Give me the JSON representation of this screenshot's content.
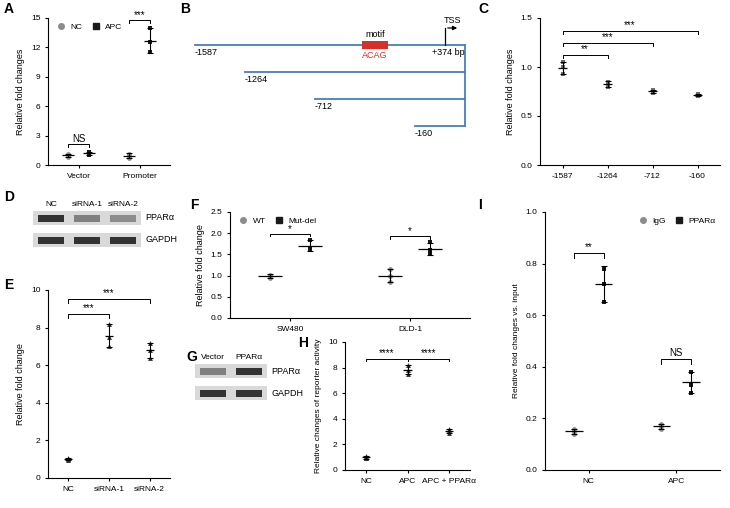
{
  "chart_data": [
    {
      "type": "dot_plot",
      "title": "A",
      "y_label": "Relative fold changes",
      "categories": [
        "Vector",
        "Promoter"
      ],
      "series": [
        {
          "name": "NC",
          "color": "#8c8c8c",
          "marker": "circle",
          "values": [
            [
              1.0,
              0.85,
              1.1
            ],
            [
              1.0,
              0.7,
              1.15
            ]
          ],
          "means": [
            0.98,
            0.95
          ],
          "errors": [
            0.13,
            0.23
          ]
        },
        {
          "name": "APC",
          "color": "#1a1a1a",
          "marker": "square",
          "values": [
            [
              1.15,
              1.05,
              1.35
            ],
            [
              14.0,
              12.5,
              11.5
            ]
          ],
          "means": [
            1.18,
            12.67
          ],
          "errors": [
            0.15,
            1.26
          ]
        }
      ],
      "ylim": [
        0,
        15
      ],
      "yticks": [
        0,
        3,
        6,
        9,
        12,
        15
      ],
      "legend": "upper left",
      "annotations": [
        {
          "text": "NS",
          "category": "Vector"
        },
        {
          "text": "***",
          "category": "Promoter"
        }
      ]
    },
    {
      "type": "dot_plot",
      "title": "C",
      "y_label": "Relative fold changes",
      "categories": [
        "-1587",
        "-1264",
        "-712",
        "-160"
      ],
      "series": [
        {
          "color": "#6e6e6e",
          "marker": "square",
          "values": [
            [
              1.05,
              0.93,
              1.0
            ],
            [
              0.85,
              0.8,
              0.84
            ],
            [
              0.77,
              0.73,
              0.75
            ],
            [
              0.72,
              0.7,
              0.71
            ]
          ],
          "means": [
            0.99,
            0.83,
            0.75,
            0.71
          ],
          "errors": [
            0.06,
            0.03,
            0.02,
            0.01
          ]
        }
      ],
      "ylim": [
        0,
        1.5
      ],
      "yticks": [
        {
          "value": 0,
          "label": "0.0"
        },
        {
          "value": 0.5,
          "label": "0.5"
        },
        {
          "value": 1.0,
          "label": "1.0"
        },
        {
          "value": 1.5,
          "label": "1.5"
        }
      ],
      "annotations": [
        {
          "text": "**",
          "between": [
            "-1587",
            "-1264"
          ]
        },
        {
          "text": "***",
          "between": [
            "-1587",
            "-712"
          ]
        },
        {
          "text": "***",
          "between": [
            "-1587",
            "-160"
          ]
        }
      ]
    },
    {
      "type": "dot_plot",
      "title": "E",
      "y_label": "Relative fold change",
      "categories": [
        "NC",
        "siRNA-1",
        "siRNA-2"
      ],
      "series": [
        {
          "color": "#2b2b2b",
          "marker": "triangle",
          "values": [
            [
              1.05,
              0.98,
              1.0
            ],
            [
              8.2,
              7.5,
              7.0
            ],
            [
              7.2,
              6.8,
              6.4
            ]
          ],
          "means": [
            1.01,
            7.57,
            6.8
          ],
          "errors": [
            0.04,
            0.61,
            0.4
          ]
        }
      ],
      "ylim": [
        0,
        10
      ],
      "yticks": [
        0,
        2,
        4,
        6,
        8,
        10
      ],
      "annotations": [
        {
          "text": "***",
          "between": [
            "NC",
            "siRNA-1"
          ]
        },
        {
          "text": "***",
          "between": [
            "NC",
            "siRNA-2"
          ]
        }
      ]
    },
    {
      "type": "dot_plot",
      "title": "F",
      "y_label": "Relative fold change",
      "categories": [
        "SW480",
        "DLD-1"
      ],
      "series": [
        {
          "name": "WT",
          "color": "#8c8c8c",
          "marker": "circle",
          "values": [
            [
              1.0,
              0.95,
              1.02
            ],
            [
              1.0,
              0.85,
              1.15
            ]
          ],
          "means": [
            0.99,
            1.0
          ],
          "errors": [
            0.04,
            0.15
          ]
        },
        {
          "name": "Mut-del",
          "color": "#1a1a1a",
          "marker": "square",
          "values": [
            [
              1.6,
              1.85,
              1.65
            ],
            [
              1.8,
              1.6,
              1.5
            ]
          ],
          "means": [
            1.7,
            1.63
          ],
          "errors": [
            0.13,
            0.15
          ]
        }
      ],
      "ylim": [
        0,
        2.5
      ],
      "yticks": [
        {
          "value": 0,
          "label": "0.0"
        },
        {
          "value": 0.5,
          "label": "0.5"
        },
        {
          "value": 1.0,
          "label": "1.0"
        },
        {
          "value": 1.5,
          "label": "1.5"
        },
        {
          "value": 2.0,
          "label": "2.0"
        },
        {
          "value": 2.5,
          "label": "2.5"
        }
      ],
      "legend": "upper left",
      "annotations": [
        {
          "text": "*",
          "category": "SW480"
        },
        {
          "text": "*",
          "category": "DLD-1"
        }
      ]
    },
    {
      "type": "dot_plot",
      "title": "H",
      "y_label": "Relative changes of reporter activity",
      "categories": [
        "NC",
        "APC",
        "APC + PPARα"
      ],
      "series": [
        {
          "color": "#2b2b2b",
          "marker": "triangle",
          "values": [
            [
              1.1,
              0.95,
              0.9
            ],
            [
              8.2,
              7.5,
              7.8
            ],
            [
              3.2,
              2.9,
              3.1
            ]
          ],
          "means": [
            0.98,
            7.83,
            3.07
          ],
          "errors": [
            0.1,
            0.35,
            0.15
          ]
        }
      ],
      "ylim": [
        0,
        10
      ],
      "yticks": [
        0,
        2,
        4,
        6,
        8,
        10
      ],
      "annotations": [
        {
          "text": "****",
          "between": [
            "NC",
            "APC"
          ]
        },
        {
          "text": "****",
          "between": [
            "APC",
            "APC + PPARα"
          ]
        }
      ]
    },
    {
      "type": "dot_plot",
      "title": "I",
      "y_label": "Relative fold changes vs. input",
      "categories": [
        "NC",
        "APC"
      ],
      "series": [
        {
          "name": "IgG",
          "color": "#8c8c8c",
          "marker": "circle",
          "values": [
            [
              0.15,
              0.14,
              0.16
            ],
            [
              0.17,
              0.16,
              0.18
            ]
          ],
          "means": [
            0.15,
            0.17
          ],
          "errors": [
            0.01,
            0.01
          ]
        },
        {
          "name": "PPARα",
          "color": "#1a1a1a",
          "marker": "square",
          "values": [
            [
              0.78,
              0.65,
              0.72
            ],
            [
              0.38,
              0.3,
              0.33
            ]
          ],
          "means": [
            0.72,
            0.34
          ],
          "errors": [
            0.07,
            0.04
          ]
        }
      ],
      "ylim": [
        0,
        1.0
      ],
      "yticks": [
        {
          "value": 0,
          "label": "0.0"
        },
        {
          "value": 0.2,
          "label": "0.2"
        },
        {
          "value": 0.4,
          "label": "0.4"
        },
        {
          "value": 0.6,
          "label": "0.6"
        },
        {
          "value": 0.8,
          "label": "0.8"
        },
        {
          "value": 1.0,
          "label": "1.0"
        }
      ],
      "legend": "upper right",
      "annotations": [
        {
          "text": "**",
          "category": "NC"
        },
        {
          "text": "NS",
          "category": "APC"
        }
      ]
    }
  ],
  "diagram": {
    "title": "B",
    "constructs": [
      "-1587",
      "-1264",
      "-712",
      "-160"
    ],
    "end_label": "+374 bp",
    "motif_label": "motif",
    "motif_sequence": "ACAG",
    "tss_label": "TSS"
  },
  "blots": [
    {
      "title": "D",
      "lanes": [
        "NC",
        "siRNA-1",
        "siRNA-2"
      ],
      "rows": [
        "PPARα",
        "GAPDH"
      ]
    },
    {
      "title": "G",
      "lanes": [
        "Vector",
        "PPARα"
      ],
      "rows": [
        "PPARα",
        "GAPDH"
      ]
    }
  ]
}
